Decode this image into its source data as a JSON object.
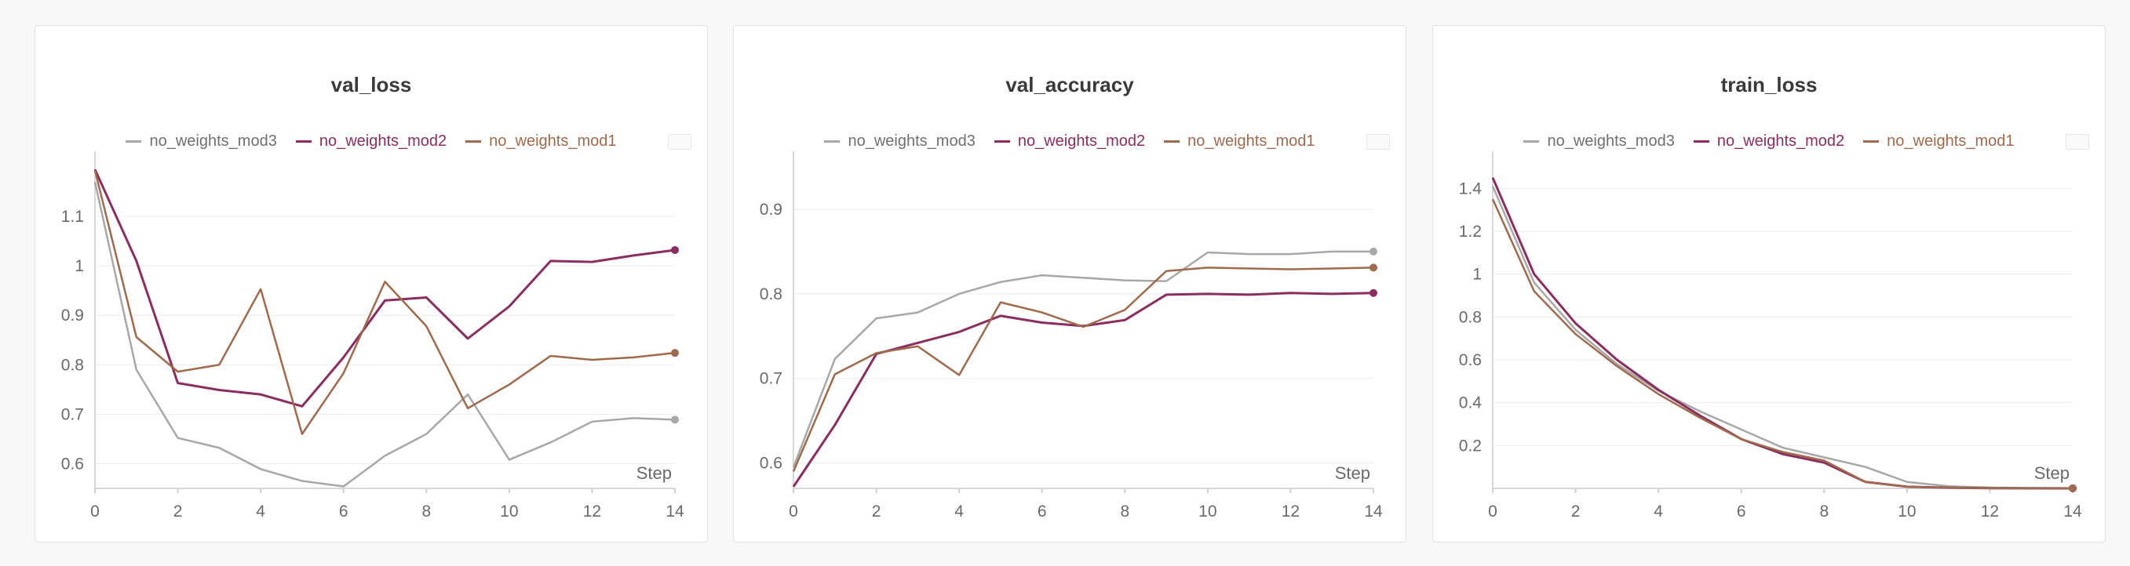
{
  "colors": {
    "no_weights_mod3": "#a8a8a8",
    "no_weights_mod2": "#8b2d5f",
    "no_weights_mod1": "#a06a4c"
  },
  "chart_data": [
    {
      "type": "line",
      "title": "val_loss",
      "xlabel": "Step",
      "xlim": [
        0,
        14
      ],
      "ylim": [
        0.55,
        1.2
      ],
      "xticks": [
        0,
        2,
        4,
        6,
        8,
        10,
        12,
        14
      ],
      "xtick_labels": [
        "0",
        "2",
        "4",
        "6",
        "8",
        "10",
        "12",
        "14"
      ],
      "yticks": [
        0.6,
        0.7,
        0.8,
        0.9,
        1.0,
        1.1
      ],
      "ytick_labels": [
        "0.6",
        "0.7",
        "0.8",
        "0.9",
        "1",
        "1.1"
      ],
      "grid": true,
      "legend": "top-center",
      "x": [
        0,
        1,
        2,
        3,
        4,
        5,
        6,
        7,
        8,
        9,
        10,
        11,
        12,
        13,
        14
      ],
      "series": [
        {
          "name": "no_weights_mod3",
          "values": [
            1.17,
            0.79,
            0.652,
            0.632,
            0.589,
            0.565,
            0.554,
            0.616,
            0.66,
            0.74,
            0.608,
            0.643,
            0.685,
            0.692,
            0.689
          ]
        },
        {
          "name": "no_weights_mod2",
          "values": [
            1.195,
            1.01,
            0.763,
            0.749,
            0.74,
            0.716,
            0.815,
            0.93,
            0.936,
            0.853,
            0.918,
            1.01,
            1.008,
            1.021,
            1.032
          ]
        },
        {
          "name": "no_weights_mod1",
          "values": [
            1.193,
            0.856,
            0.786,
            0.8,
            0.953,
            0.66,
            0.783,
            0.968,
            0.878,
            0.712,
            0.76,
            0.818,
            0.81,
            0.815,
            0.824
          ]
        }
      ]
    },
    {
      "type": "line",
      "title": "val_accuracy",
      "xlabel": "Step",
      "xlim": [
        0,
        14
      ],
      "ylim": [
        0.57,
        0.95
      ],
      "xticks": [
        0,
        2,
        4,
        6,
        8,
        10,
        12,
        14
      ],
      "xtick_labels": [
        "0",
        "2",
        "4",
        "6",
        "8",
        "10",
        "12",
        "14"
      ],
      "yticks": [
        0.6,
        0.7,
        0.8,
        0.9
      ],
      "ytick_labels": [
        "0.6",
        "0.7",
        "0.8",
        "0.9"
      ],
      "grid": true,
      "legend": "top-center",
      "x": [
        0,
        1,
        2,
        3,
        4,
        5,
        6,
        7,
        8,
        9,
        10,
        11,
        12,
        13,
        14
      ],
      "series": [
        {
          "name": "no_weights_mod3",
          "values": [
            0.595,
            0.723,
            0.771,
            0.778,
            0.8,
            0.814,
            0.822,
            0.819,
            0.816,
            0.815,
            0.849,
            0.847,
            0.847,
            0.85,
            0.85
          ]
        },
        {
          "name": "no_weights_mod2",
          "values": [
            0.572,
            0.645,
            0.729,
            0.742,
            0.755,
            0.774,
            0.766,
            0.762,
            0.769,
            0.799,
            0.8,
            0.799,
            0.801,
            0.8,
            0.801
          ]
        },
        {
          "name": "no_weights_mod1",
          "values": [
            0.59,
            0.705,
            0.73,
            0.738,
            0.704,
            0.79,
            0.778,
            0.761,
            0.781,
            0.827,
            0.831,
            0.83,
            0.829,
            0.83,
            0.831
          ]
        }
      ]
    },
    {
      "type": "line",
      "title": "train_loss",
      "xlabel": "Step",
      "xlim": [
        0,
        14
      ],
      "ylim": [
        0,
        1.5
      ],
      "xticks": [
        0,
        2,
        4,
        6,
        8,
        10,
        12,
        14
      ],
      "xtick_labels": [
        "0",
        "2",
        "4",
        "6",
        "8",
        "10",
        "12",
        "14"
      ],
      "yticks": [
        0.2,
        0.4,
        0.6,
        0.8,
        1.0,
        1.2,
        1.4
      ],
      "ytick_labels": [
        "0.2",
        "0.4",
        "0.6",
        "0.8",
        "1",
        "1.2",
        "1.4"
      ],
      "grid": true,
      "legend": "top-center",
      "x": [
        0,
        1,
        2,
        3,
        4,
        5,
        6,
        7,
        8,
        9,
        10,
        11,
        12,
        13,
        14
      ],
      "series": [
        {
          "name": "no_weights_mod3",
          "values": [
            1.41,
            0.96,
            0.74,
            0.58,
            0.455,
            0.36,
            0.275,
            0.19,
            0.145,
            0.1,
            0.03,
            0.01,
            0.004,
            0.002,
            0.001
          ]
        },
        {
          "name": "no_weights_mod2",
          "values": [
            1.45,
            1.0,
            0.77,
            0.6,
            0.46,
            0.34,
            0.23,
            0.16,
            0.12,
            0.03,
            0.008,
            0.003,
            0.001,
            0.0005,
            0.0002
          ]
        },
        {
          "name": "no_weights_mod1",
          "values": [
            1.35,
            0.92,
            0.72,
            0.57,
            0.44,
            0.33,
            0.23,
            0.17,
            0.13,
            0.03,
            0.008,
            0.003,
            0.001,
            0.0005,
            0.0002
          ]
        }
      ]
    }
  ]
}
